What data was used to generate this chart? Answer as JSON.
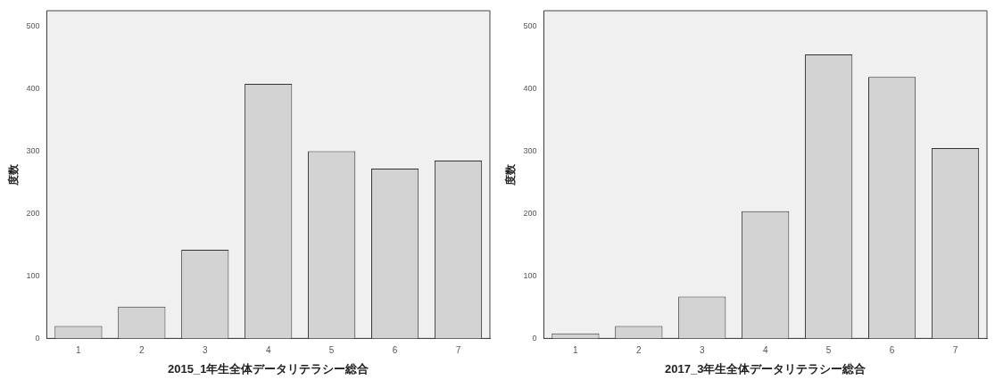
{
  "chart_data": [
    {
      "type": "bar",
      "xlabel": "2015_1年生全体データリテラシー総合",
      "ylabel": "度数",
      "categories": [
        "1",
        "2",
        "3",
        "4",
        "5",
        "6",
        "7"
      ],
      "values": [
        20,
        51,
        142,
        408,
        300,
        272,
        285
      ],
      "color": "#d3d3d3",
      "ylim": [
        0,
        525
      ],
      "yticks": [
        0,
        100,
        200,
        300,
        400,
        500
      ],
      "grid": false,
      "legend": false
    },
    {
      "type": "bar",
      "xlabel": "2017_3年生全体データリテラシー総合",
      "ylabel": "度数",
      "categories": [
        "1",
        "2",
        "3",
        "4",
        "5",
        "6",
        "7"
      ],
      "values": [
        8,
        20,
        67,
        204,
        455,
        419,
        305
      ],
      "color": "#d3d3d3",
      "ylim": [
        0,
        525
      ],
      "yticks": [
        0,
        100,
        200,
        300,
        400,
        500
      ],
      "grid": false,
      "legend": false
    }
  ]
}
